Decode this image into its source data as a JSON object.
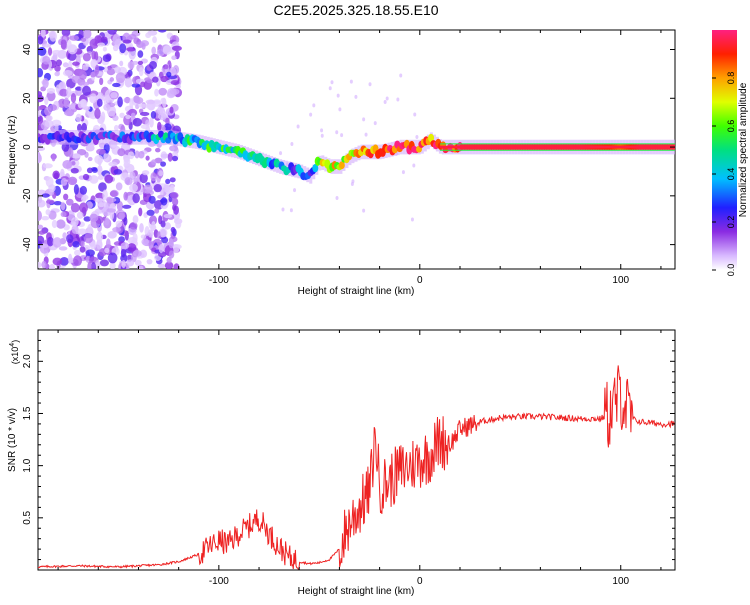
{
  "title": "C2E5.2025.325.18.55.E10",
  "chart_data": [
    {
      "type": "heatmap",
      "name": "spectrogram",
      "xlabel": "Height of straight line (km)",
      "ylabel": "Frequency (Hz)",
      "xlim": [
        -190,
        127
      ],
      "ylim": [
        -50,
        48
      ],
      "xticks": [
        -100,
        0,
        100
      ],
      "xtick_labels": [
        "-100",
        "0",
        "100"
      ],
      "yticks": [
        -40,
        -20,
        0,
        20,
        40
      ],
      "ytick_labels": [
        "-40",
        "-20",
        "0",
        "20",
        "40"
      ],
      "colorbar": {
        "label": "Normalized spectral amplitude",
        "range": [
          0,
          1
        ],
        "ticks": [
          0.0,
          0.2,
          0.4,
          0.6,
          0.8
        ],
        "tick_labels": [
          "0.0",
          "0.2",
          "0.4",
          "0.6",
          "0.8"
        ]
      },
      "ridge": {
        "x": [
          -190,
          -150,
          -125,
          -110,
          -100,
          -90,
          -80,
          -70,
          -60,
          -55,
          -50,
          -45,
          -40,
          -35,
          -30,
          -20,
          -10,
          0,
          5,
          10,
          20,
          40,
          60,
          80,
          95,
          100,
          110,
          127
        ],
        "y": [
          4,
          4,
          4,
          2,
          0,
          -2,
          -5,
          -8,
          -10,
          -12,
          -6,
          -8,
          -8,
          -4,
          -2,
          -2,
          0,
          0,
          3,
          0,
          0,
          0,
          0,
          0,
          0,
          0,
          0,
          0
        ],
        "amplitude": [
          0.15,
          0.2,
          0.4,
          0.45,
          0.5,
          0.5,
          0.45,
          0.35,
          0.3,
          0.25,
          0.6,
          0.7,
          0.75,
          0.7,
          0.8,
          0.9,
          0.95,
          0.9,
          0.85,
          0.95,
          0.95,
          0.95,
          0.95,
          0.95,
          0.9,
          0.85,
          0.95,
          0.95
        ]
      }
    },
    {
      "type": "line",
      "name": "snr",
      "xlabel": "Height of straight line (km)",
      "ylabel": "SNR (10 * v/v)",
      "y_scale_label": "(x10",
      "y_scale_exp": "4",
      "xlim": [
        -190,
        127
      ],
      "ylim": [
        0,
        2.3
      ],
      "xticks": [
        -100,
        0,
        100
      ],
      "xtick_labels": [
        "-100",
        "0",
        "100"
      ],
      "yticks": [
        0.5,
        1.0,
        1.5,
        2.0
      ],
      "ytick_labels": [
        "0.5",
        "1.0",
        "1.5",
        "2.0"
      ],
      "color": "#ee2222",
      "series": [
        {
          "name": "SNR",
          "x": [
            -190,
            -170,
            -150,
            -130,
            -120,
            -110,
            -105,
            -100,
            -95,
            -90,
            -85,
            -80,
            -75,
            -70,
            -65,
            -60,
            -55,
            -50,
            -45,
            -40,
            -35,
            -30,
            -25,
            -22,
            -20,
            -15,
            -10,
            -5,
            0,
            5,
            10,
            15,
            20,
            30,
            40,
            50,
            60,
            70,
            80,
            90,
            95,
            100,
            105,
            110,
            120,
            127
          ],
          "y": [
            0.03,
            0.04,
            0.03,
            0.05,
            0.08,
            0.15,
            0.22,
            0.28,
            0.25,
            0.35,
            0.42,
            0.5,
            0.35,
            0.22,
            0.12,
            0.08,
            0.06,
            0.07,
            0.1,
            0.2,
            0.45,
            0.6,
            0.75,
            1.3,
            0.8,
            0.85,
            0.95,
            1.0,
            1.05,
            1.1,
            1.25,
            1.2,
            1.35,
            1.42,
            1.46,
            1.47,
            1.47,
            1.46,
            1.45,
            1.45,
            1.5,
            1.7,
            1.45,
            1.42,
            1.4,
            1.4
          ]
        }
      ]
    }
  ]
}
